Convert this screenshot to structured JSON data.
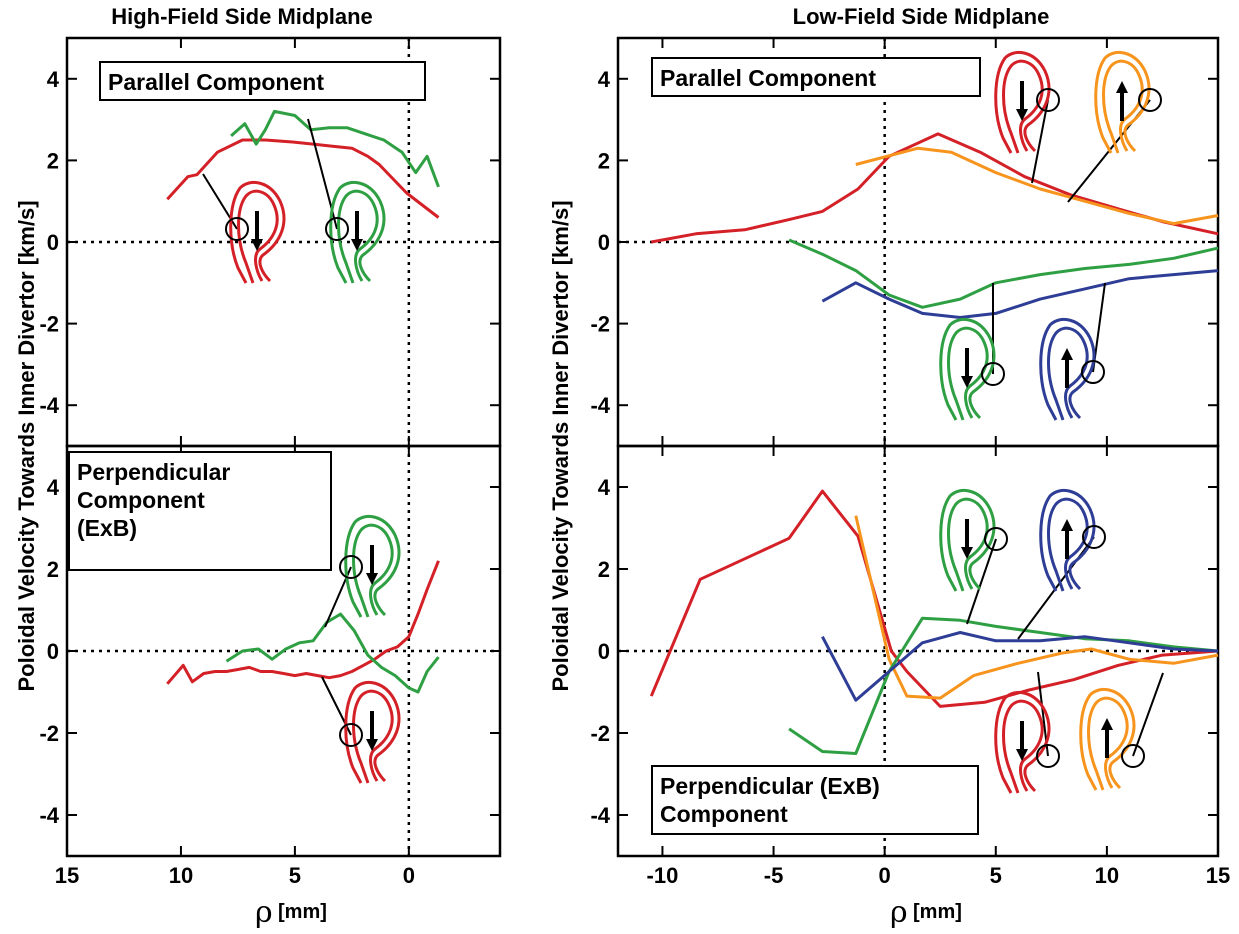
{
  "colors": {
    "red": "#d42027",
    "green": "#2ea043",
    "orange": "#f7941d",
    "blue": "#2e3d96"
  },
  "ylabel": "Poloidal Velocity Towards Inner Divertor [km/s]",
  "xlabel_symbol": "ρ",
  "xlabel_unit": "[mm]",
  "chart_data": [
    {
      "type": "line",
      "title": "High-Field Side Midplane",
      "annotation": "Parallel Component",
      "annotation_lines": [
        "Parallel Component"
      ],
      "xlim": [
        15,
        -4
      ],
      "ylim": [
        -5,
        5
      ],
      "x_ticks": [
        15,
        10,
        5,
        0
      ],
      "y_ticks": [
        4,
        2,
        0,
        -2,
        -4
      ],
      "series": [
        {
          "color": "red",
          "direction": "down",
          "x": [
            10.6,
            9.7,
            9.3,
            8.4,
            7.3,
            6.3,
            5.1,
            4.2,
            3.4,
            2.5,
            1.8,
            1.3,
            0.1,
            -1.3
          ],
          "y": [
            1.05,
            1.6,
            1.65,
            2.2,
            2.5,
            2.5,
            2.45,
            2.4,
            2.35,
            2.3,
            2.1,
            1.9,
            1.2,
            0.6
          ]
        },
        {
          "color": "green",
          "direction": "down",
          "x": [
            7.8,
            7.2,
            6.7,
            6.3,
            5.9,
            5.0,
            4.3,
            3.5,
            2.7,
            1.9,
            1.1,
            0.3,
            -0.3,
            -0.8,
            -1.3
          ],
          "y": [
            2.6,
            2.9,
            2.4,
            2.75,
            3.2,
            3.1,
            2.75,
            2.8,
            2.8,
            2.65,
            2.5,
            2.2,
            1.7,
            2.1,
            1.35
          ]
        }
      ]
    },
    {
      "type": "line",
      "title": "",
      "annotation": "Perpendicular Component (ExB)",
      "annotation_lines": [
        "Perpendicular",
        "Component",
        "(ExB)"
      ],
      "xlim": [
        15,
        -4
      ],
      "ylim": [
        -5,
        5
      ],
      "x_ticks": [
        15,
        10,
        5,
        0
      ],
      "y_ticks": [
        4,
        2,
        0,
        -2,
        -4
      ],
      "series": [
        {
          "color": "red",
          "direction": "down",
          "x": [
            10.6,
            9.9,
            9.5,
            9.0,
            8.5,
            8.0,
            7.5,
            7.0,
            6.5,
            6.0,
            5.5,
            5.0,
            4.5,
            4.0,
            3.5,
            3.0,
            2.5,
            2.0,
            1.5,
            1.0,
            0.5,
            0.0,
            -0.4,
            -0.8,
            -1.3
          ],
          "y": [
            -0.8,
            -0.35,
            -0.75,
            -0.55,
            -0.5,
            -0.5,
            -0.45,
            -0.4,
            -0.5,
            -0.5,
            -0.55,
            -0.6,
            -0.55,
            -0.6,
            -0.65,
            -0.6,
            -0.5,
            -0.35,
            -0.2,
            0.0,
            0.1,
            0.35,
            0.9,
            1.5,
            2.2
          ]
        },
        {
          "color": "green",
          "direction": "down",
          "x": [
            8.0,
            7.3,
            6.6,
            6.0,
            5.4,
            4.8,
            4.2,
            3.6,
            3.0,
            2.4,
            1.8,
            1.2,
            0.6,
            0.0,
            -0.4,
            -0.8,
            -1.3
          ],
          "y": [
            -0.25,
            0.0,
            0.05,
            -0.2,
            0.05,
            0.2,
            0.25,
            0.7,
            0.9,
            0.5,
            -0.1,
            -0.4,
            -0.6,
            -0.9,
            -1.0,
            -0.5,
            -0.15
          ]
        }
      ]
    },
    {
      "type": "line",
      "title": "Low-Field Side Midplane",
      "annotation": "Parallel Component",
      "annotation_lines": [
        "Parallel Component"
      ],
      "xlim": [
        -12,
        15
      ],
      "ylim": [
        -5,
        5
      ],
      "x_ticks": [
        -10,
        -5,
        0,
        5,
        10,
        15
      ],
      "y_ticks": [
        4,
        2,
        0,
        -2,
        -4
      ],
      "series": [
        {
          "color": "red",
          "direction": "down",
          "x": [
            -10.5,
            -8.5,
            -6.3,
            -4.3,
            -2.8,
            -1.2,
            0.2,
            2.4,
            4.3,
            6.3,
            8.4,
            10.6,
            12.5,
            15.0
          ],
          "y": [
            0.0,
            0.2,
            0.3,
            0.55,
            0.75,
            1.3,
            2.1,
            2.65,
            2.2,
            1.6,
            1.15,
            0.8,
            0.5,
            0.2
          ]
        },
        {
          "color": "orange",
          "direction": "up",
          "x": [
            -1.3,
            1.5,
            3.0,
            5.0,
            7.0,
            9.0,
            11.0,
            13.0,
            15.0
          ],
          "y": [
            1.9,
            2.3,
            2.2,
            1.7,
            1.3,
            1.0,
            0.7,
            0.45,
            0.65
          ]
        },
        {
          "color": "green",
          "direction": "down",
          "x": [
            -4.3,
            -2.8,
            -1.3,
            0.2,
            1.7,
            3.4,
            5.0,
            7.0,
            9.0,
            11.0,
            13.0,
            15.0
          ],
          "y": [
            0.05,
            -0.3,
            -0.7,
            -1.3,
            -1.6,
            -1.4,
            -1.0,
            -0.8,
            -0.65,
            -0.55,
            -0.4,
            -0.15
          ]
        },
        {
          "color": "blue",
          "direction": "up",
          "x": [
            -2.8,
            -1.3,
            0.2,
            1.7,
            3.4,
            5.0,
            7.0,
            9.0,
            11.0,
            13.0,
            15.0
          ],
          "y": [
            -1.45,
            -1.0,
            -1.4,
            -1.75,
            -1.85,
            -1.75,
            -1.4,
            -1.15,
            -0.9,
            -0.8,
            -0.7
          ]
        }
      ]
    },
    {
      "type": "line",
      "title": "",
      "annotation": "Perpendicular (ExB) Component",
      "annotation_lines": [
        "Perpendicular (ExB)",
        "Component"
      ],
      "xlim": [
        -12,
        15
      ],
      "ylim": [
        -5,
        5
      ],
      "x_ticks": [
        -10,
        -5,
        0,
        5,
        10,
        15
      ],
      "y_ticks": [
        4,
        2,
        0,
        -2,
        -4
      ],
      "series": [
        {
          "color": "red",
          "direction": "down",
          "x": [
            -10.5,
            -8.3,
            -6.3,
            -4.3,
            -2.8,
            -1.2,
            0.3,
            1.0,
            2.5,
            4.5,
            6.5,
            8.5,
            10.5,
            12.5,
            15.0
          ],
          "y": [
            -1.1,
            1.75,
            2.25,
            2.75,
            3.9,
            2.8,
            0.0,
            -0.5,
            -1.35,
            -1.25,
            -0.95,
            -0.7,
            -0.35,
            -0.1,
            0.0
          ]
        },
        {
          "color": "orange",
          "direction": "up",
          "x": [
            -1.3,
            0.2,
            1.0,
            2.5,
            4.0,
            6.0,
            8.0,
            9.3,
            11.0,
            13.0,
            15.0
          ],
          "y": [
            3.3,
            -0.2,
            -1.1,
            -1.15,
            -0.6,
            -0.3,
            -0.05,
            0.05,
            -0.2,
            -0.3,
            -0.1
          ]
        },
        {
          "color": "green",
          "direction": "down",
          "x": [
            -4.3,
            -2.8,
            -1.3,
            0.2,
            1.7,
            3.4,
            5.0,
            7.0,
            9.0,
            11.0,
            13.0,
            15.0
          ],
          "y": [
            -1.9,
            -2.45,
            -2.5,
            -0.5,
            0.8,
            0.75,
            0.6,
            0.45,
            0.3,
            0.25,
            0.1,
            0.0
          ]
        },
        {
          "color": "blue",
          "direction": "up",
          "x": [
            -2.8,
            -1.3,
            0.2,
            1.7,
            3.4,
            5.0,
            7.0,
            9.0,
            11.0,
            13.0,
            15.0
          ],
          "y": [
            0.35,
            -1.2,
            -0.5,
            0.2,
            0.45,
            0.25,
            0.25,
            0.35,
            0.2,
            0.05,
            0.0
          ]
        }
      ]
    }
  ]
}
